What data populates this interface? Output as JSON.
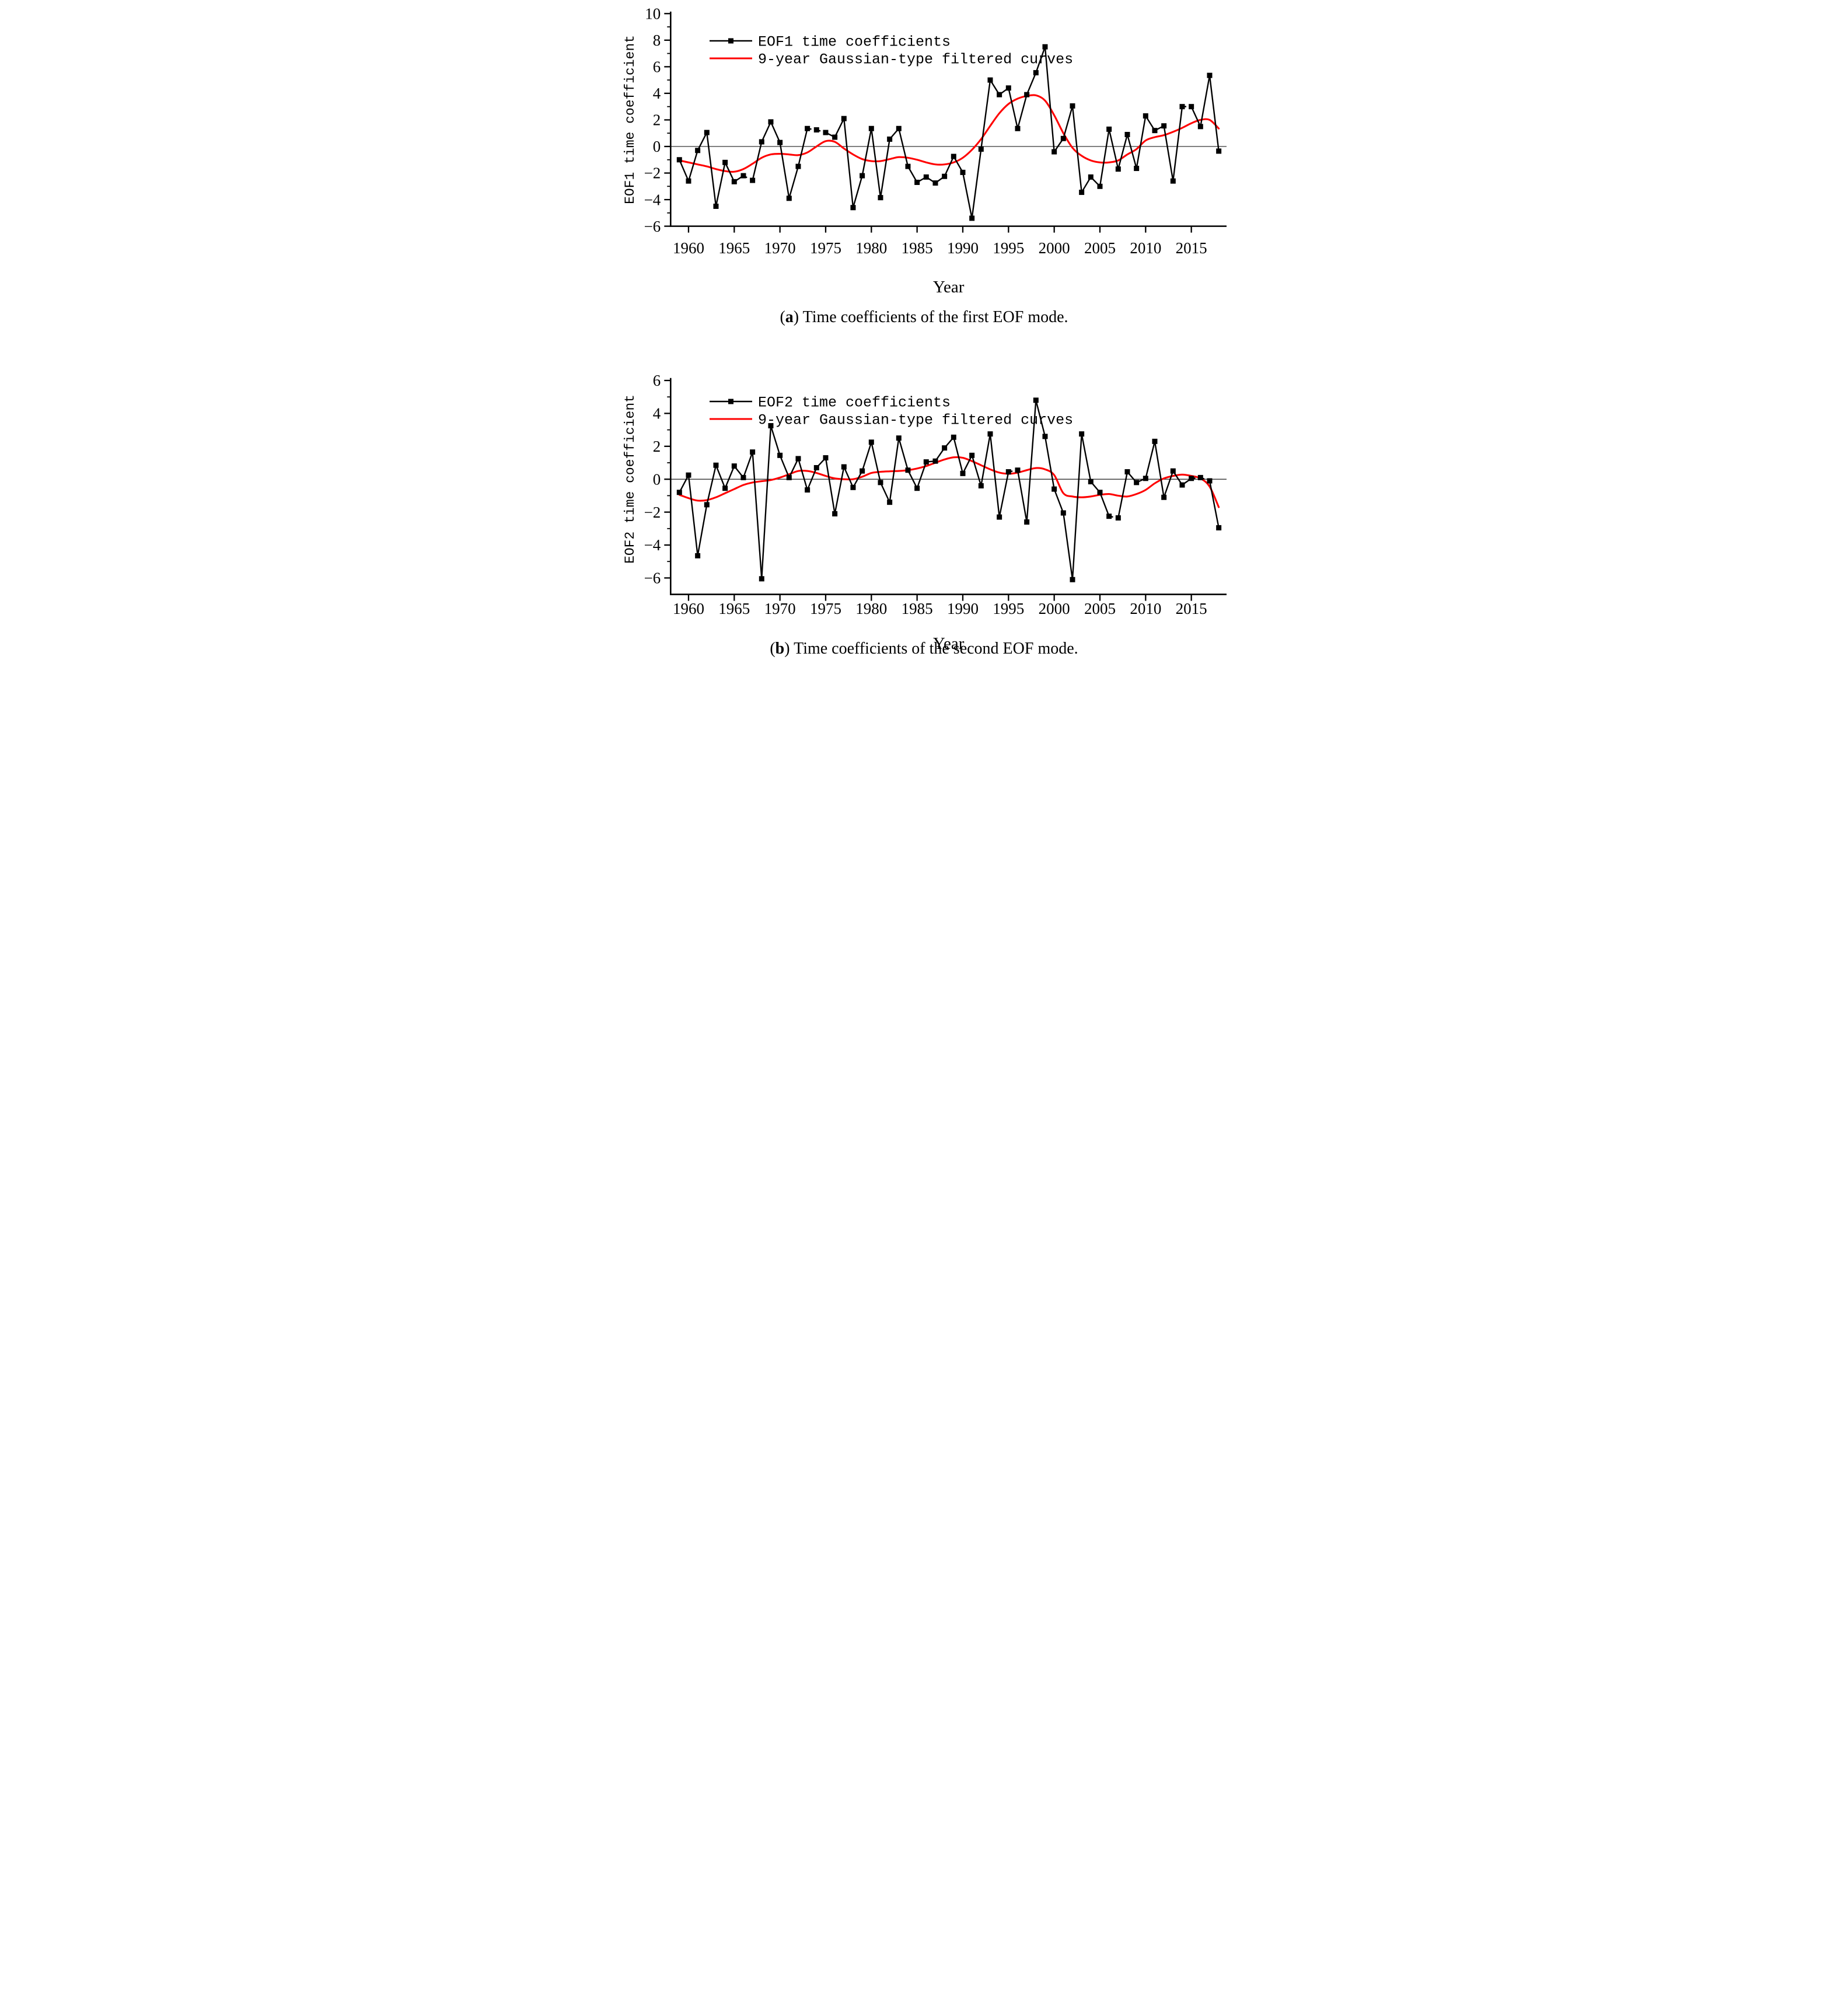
{
  "figure": {
    "background_color": "#ffffff",
    "series_color_black": "#000000",
    "filtered_curve_color": "#ff0000"
  },
  "chart_data": [
    {
      "type": "line",
      "panel": "a",
      "caption": "(a) Time coefficients of the first EOF mode.",
      "caption_prefix": "(",
      "caption_bold": "a",
      "caption_suffix": ") Time coefficients of the first EOF mode.",
      "xlabel": "Year",
      "ylabel": "EOF1 time coefficient",
      "ylim": [
        -6,
        10
      ],
      "xlim": [
        1956.6,
        2019.4
      ],
      "grid": false,
      "zero_line": true,
      "legend_position": "upper-left-inside",
      "yticks_labeled": [
        10,
        8,
        6,
        4,
        2,
        0,
        -2,
        -4,
        -6
      ],
      "yticks_minor": [
        9,
        7,
        5,
        3,
        1,
        -1,
        -3,
        -5
      ],
      "xticks": [
        1960,
        1965,
        1970,
        1975,
        1980,
        1985,
        1990,
        1995,
        2000,
        2005,
        2010,
        2015
      ],
      "x": [
        1959,
        1960,
        1961,
        1962,
        1963,
        1964,
        1965,
        1966,
        1967,
        1968,
        1969,
        1970,
        1971,
        1972,
        1973,
        1974,
        1975,
        1976,
        1977,
        1978,
        1979,
        1980,
        1981,
        1982,
        1983,
        1984,
        1985,
        1986,
        1987,
        1988,
        1989,
        1990,
        1991,
        1992,
        1993,
        1994,
        1995,
        1996,
        1997,
        1998,
        1999,
        2000,
        2001,
        2002,
        2003,
        2004,
        2005,
        2006,
        2007,
        2008,
        2009,
        2010,
        2011,
        2012,
        2013,
        2014,
        2015,
        2016,
        2017,
        2018
      ],
      "series": [
        {
          "name": "EOF1 time coefficients",
          "color": "#000000",
          "marker": "square",
          "line_style": "solid",
          "dashed_segment_start_years": [
            1966,
            1973,
            1974,
            2014
          ],
          "values": [
            -1.0,
            -2.6,
            -0.3,
            1.05,
            -4.5,
            -1.2,
            -2.65,
            -2.2,
            -2.55,
            0.35,
            1.85,
            0.3,
            -3.9,
            -1.5,
            1.35,
            1.25,
            1.05,
            0.7,
            2.1,
            -4.6,
            -2.2,
            1.35,
            -3.85,
            0.55,
            1.35,
            -1.5,
            -2.7,
            -2.3,
            -2.75,
            -2.25,
            -0.75,
            -1.95,
            -5.4,
            -0.2,
            5.0,
            3.9,
            4.4,
            1.35,
            3.9,
            5.55,
            7.5,
            -0.4,
            0.6,
            3.05,
            -3.45,
            -2.3,
            -3.0,
            1.3,
            -1.7,
            0.9,
            -1.65,
            2.3,
            1.2,
            1.55,
            -2.6,
            3.0,
            3.0,
            1.5,
            5.35,
            -0.35
          ]
        },
        {
          "name": "9-year Gaussian-type filtered curves",
          "color": "#ff0000",
          "marker": "none",
          "line_style": "smooth",
          "values": [
            -1.05,
            -1.2,
            -1.35,
            -1.5,
            -1.7,
            -1.85,
            -1.9,
            -1.7,
            -1.3,
            -0.85,
            -0.6,
            -0.55,
            -0.6,
            -0.65,
            -0.45,
            0.0,
            0.4,
            0.35,
            -0.15,
            -0.6,
            -0.95,
            -1.1,
            -1.1,
            -0.95,
            -0.8,
            -0.85,
            -1.0,
            -1.2,
            -1.35,
            -1.35,
            -1.2,
            -0.85,
            -0.25,
            0.55,
            1.55,
            2.5,
            3.2,
            3.6,
            3.8,
            3.85,
            3.45,
            2.35,
            1.0,
            -0.1,
            -0.7,
            -1.05,
            -1.2,
            -1.2,
            -1.05,
            -0.6,
            -0.2,
            0.45,
            0.7,
            0.85,
            1.1,
            1.4,
            1.75,
            2.0,
            2.0,
            1.35
          ]
        }
      ]
    },
    {
      "type": "line",
      "panel": "b",
      "caption": "(b) Time coefficients of the second EOF mode.",
      "caption_prefix": "(",
      "caption_bold": "b",
      "caption_suffix": ") Time coefficients of the second EOF mode.",
      "xlabel": "Year",
      "ylabel": "EOF2 time coefficient",
      "ylim": [
        -7,
        6
      ],
      "xlim": [
        1956.6,
        2019.4
      ],
      "grid": false,
      "zero_line": true,
      "legend_position": "upper-left-inside",
      "yticks_labeled": [
        6,
        4,
        2,
        0,
        -2,
        -4,
        -6
      ],
      "yticks_minor": [
        5,
        3,
        1,
        -1,
        -3,
        -5
      ],
      "xticks": [
        1960,
        1965,
        1970,
        1975,
        1980,
        1985,
        1990,
        1995,
        2000,
        2005,
        2010,
        2015
      ],
      "x": [
        1959,
        1960,
        1961,
        1962,
        1963,
        1964,
        1965,
        1966,
        1967,
        1968,
        1969,
        1970,
        1971,
        1972,
        1973,
        1974,
        1975,
        1976,
        1977,
        1978,
        1979,
        1980,
        1981,
        1982,
        1983,
        1984,
        1985,
        1986,
        1987,
        1988,
        1989,
        1990,
        1991,
        1992,
        1993,
        1994,
        1995,
        1996,
        1997,
        1998,
        1999,
        2000,
        2001,
        2002,
        2003,
        2004,
        2005,
        2006,
        2007,
        2008,
        2009,
        2010,
        2011,
        2012,
        2013,
        2014,
        2015,
        2016,
        2017,
        2018
      ],
      "series": [
        {
          "name": "EOF2 time coefficients",
          "color": "#000000",
          "marker": "square",
          "line_style": "solid",
          "dashed_segment_start_years": [
            1995,
            2006,
            2015,
            2016
          ],
          "values": [
            -0.8,
            0.25,
            -4.65,
            -1.55,
            0.85,
            -0.55,
            0.8,
            0.1,
            1.65,
            -6.05,
            3.25,
            1.45,
            0.1,
            1.25,
            -0.65,
            0.7,
            1.3,
            -2.1,
            0.75,
            -0.5,
            0.5,
            2.25,
            -0.2,
            -1.4,
            2.5,
            0.55,
            -0.55,
            1.05,
            1.1,
            1.9,
            2.55,
            0.35,
            1.45,
            -0.4,
            2.75,
            -2.3,
            0.45,
            0.55,
            -2.6,
            4.8,
            2.6,
            -0.6,
            -2.05,
            -6.1,
            2.75,
            -0.15,
            -0.8,
            -2.25,
            -2.35,
            0.45,
            -0.2,
            0.05,
            2.3,
            -1.1,
            0.5,
            -0.35,
            0.05,
            0.1,
            -0.1,
            -2.95
          ]
        },
        {
          "name": "9-year Gaussian-type filtered curves",
          "color": "#ff0000",
          "marker": "none",
          "line_style": "smooth",
          "values": [
            -0.95,
            -1.15,
            -1.3,
            -1.27,
            -1.1,
            -0.85,
            -0.6,
            -0.35,
            -0.2,
            -0.12,
            -0.05,
            0.1,
            0.3,
            0.5,
            0.5,
            0.38,
            0.2,
            0.05,
            0.0,
            0.0,
            0.15,
            0.38,
            0.45,
            0.48,
            0.5,
            0.55,
            0.65,
            0.8,
            1.0,
            1.2,
            1.33,
            1.3,
            1.1,
            0.85,
            0.6,
            0.4,
            0.33,
            0.4,
            0.55,
            0.68,
            0.6,
            0.25,
            -0.85,
            -1.05,
            -1.1,
            -1.05,
            -0.95,
            -0.9,
            -1.0,
            -1.05,
            -0.9,
            -0.65,
            -0.25,
            0.05,
            0.2,
            0.28,
            0.2,
            0.05,
            -0.45,
            -1.7
          ]
        }
      ]
    }
  ]
}
